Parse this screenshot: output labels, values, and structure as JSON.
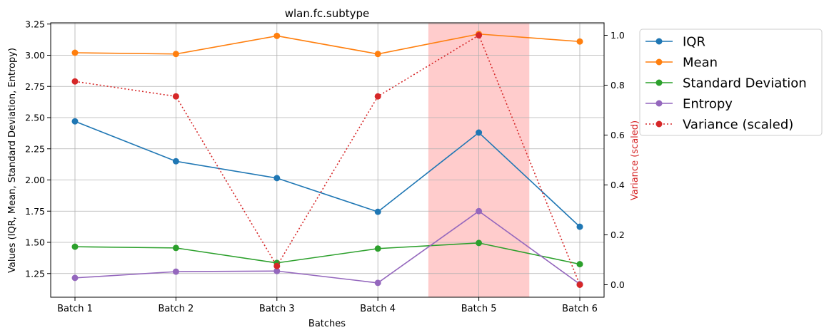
{
  "chart_data": {
    "type": "line",
    "title": "wlan.fc.subtype",
    "xlabel": "Batches",
    "ylabel": "Values (IQR, Mean, Standard Deviation, Entropy)",
    "y2label": "Variance (scaled)",
    "categories": [
      "Batch 1",
      "Batch 2",
      "Batch 3",
      "Batch 4",
      "Batch 5",
      "Batch 6"
    ],
    "ylim": [
      1.06,
      3.26
    ],
    "y2lim": [
      -0.05,
      1.05
    ],
    "yticks": [
      "1.25",
      "1.50",
      "1.75",
      "2.00",
      "2.25",
      "2.50",
      "2.75",
      "3.00",
      "3.25"
    ],
    "y2ticks": [
      "0.0",
      "0.2",
      "0.4",
      "0.6",
      "0.8",
      "1.0"
    ],
    "grid": true,
    "legend_position": "outside-top-right",
    "highlight": {
      "start_category": "Batch 5",
      "color": "#ffcccc"
    },
    "series": [
      {
        "name": "IQR",
        "color": "#1f77b4",
        "axis": "left",
        "style": "solid",
        "values": [
          2.47,
          2.15,
          2.015,
          1.745,
          2.38,
          1.625
        ]
      },
      {
        "name": "Mean",
        "color": "#ff7f0e",
        "axis": "left",
        "style": "solid",
        "values": [
          3.02,
          3.01,
          3.155,
          3.01,
          3.17,
          3.11
        ]
      },
      {
        "name": "Standard Deviation",
        "color": "#2ca02c",
        "axis": "left",
        "style": "solid",
        "values": [
          1.465,
          1.455,
          1.335,
          1.45,
          1.495,
          1.325
        ]
      },
      {
        "name": "Entropy",
        "color": "#9467bd",
        "axis": "left",
        "style": "solid",
        "values": [
          1.215,
          1.265,
          1.27,
          1.175,
          1.75,
          1.165
        ]
      },
      {
        "name": "Variance (scaled)",
        "color": "#d62728",
        "axis": "right",
        "style": "dotted",
        "values": [
          0.815,
          0.755,
          0.075,
          0.755,
          1.0,
          0.0
        ]
      }
    ]
  }
}
